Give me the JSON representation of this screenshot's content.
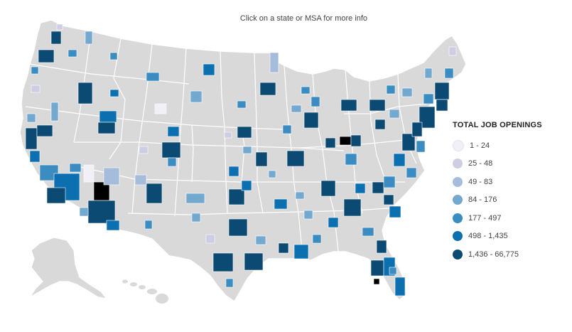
{
  "map": {
    "instruction": "Click on a state or MSA for more info",
    "state_color": "#d9d9d9",
    "border_color": "#ffffff",
    "selected_color": "#000000"
  },
  "legend": {
    "title": "TOTAL JOB OPENINGS",
    "items": [
      {
        "label": "1 - 24",
        "color": "#f1f0f7"
      },
      {
        "label": "25 - 48",
        "color": "#cdcde4"
      },
      {
        "label": "49 - 83",
        "color": "#a6bcdb"
      },
      {
        "label": "84 - 176",
        "color": "#74a9cf"
      },
      {
        "label": "177 - 497",
        "color": "#3b8cc0"
      },
      {
        "label": "498 - 1,435",
        "color": "#0c6fb0"
      },
      {
        "label": "1,436 - 66,775",
        "color": "#0b4a73"
      }
    ]
  }
}
